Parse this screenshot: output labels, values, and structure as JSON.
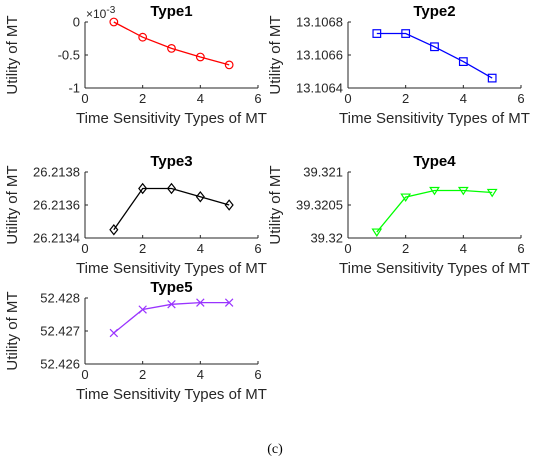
{
  "caption": "(c)",
  "chart_data": [
    {
      "type": "line",
      "title": "Type1",
      "xlabel": "Time Sensitivity Types of MT",
      "ylabel": "Utility of MT",
      "x": [
        1,
        2,
        3,
        4,
        5
      ],
      "values": [
        0,
        -0.00023,
        -0.0004,
        -0.00053,
        -0.00065
      ],
      "xlim": [
        0,
        6
      ],
      "ylim": [
        -0.001,
        0
      ],
      "xticks": [
        0,
        2,
        4,
        6
      ],
      "xtick_labels": [
        "0",
        "2",
        "4",
        "6"
      ],
      "yticks": [
        -0.001,
        -0.0005,
        0
      ],
      "ytick_labels": [
        "-1",
        "-0.5",
        "0"
      ],
      "exponent_label": "×10",
      "exponent_power": "-3",
      "marker": "circle",
      "color": "#ff0000"
    },
    {
      "type": "line",
      "title": "Type2",
      "xlabel": "Time Sensitivity Types of MT",
      "ylabel": "Utility of MT",
      "x": [
        1,
        2,
        3,
        4,
        5
      ],
      "values": [
        13.10673,
        13.10673,
        13.10665,
        13.10656,
        13.10646
      ],
      "xlim": [
        0,
        6
      ],
      "ylim": [
        13.1064,
        13.1068
      ],
      "xticks": [
        0,
        2,
        4,
        6
      ],
      "xtick_labels": [
        "0",
        "2",
        "4",
        "6"
      ],
      "yticks": [
        13.1064,
        13.1066,
        13.1068
      ],
      "ytick_labels": [
        "13.1064",
        "13.1066",
        "13.1068"
      ],
      "marker": "square",
      "color": "#0000ff"
    },
    {
      "type": "line",
      "title": "Type3",
      "xlabel": "Time Sensitivity Types of MT",
      "ylabel": "Utility of MT",
      "x": [
        1,
        2,
        3,
        4,
        5
      ],
      "values": [
        26.21345,
        26.2137,
        26.2137,
        26.21365,
        26.2136
      ],
      "xlim": [
        0,
        6
      ],
      "ylim": [
        26.2134,
        26.2138
      ],
      "xticks": [
        0,
        2,
        4,
        6
      ],
      "xtick_labels": [
        "0",
        "2",
        "4",
        "6"
      ],
      "yticks": [
        26.2134,
        26.2136,
        26.2138
      ],
      "ytick_labels": [
        "26.2134",
        "26.2136",
        "26.2138"
      ],
      "marker": "diamond",
      "color": "#000000"
    },
    {
      "type": "line",
      "title": "Type4",
      "xlabel": "Time Sensitivity Types of MT",
      "ylabel": "Utility of MT",
      "x": [
        1,
        2,
        3,
        4,
        5
      ],
      "values": [
        39.32009,
        39.32062,
        39.32072,
        39.32072,
        39.32069
      ],
      "xlim": [
        0,
        6
      ],
      "ylim": [
        39.32,
        39.321
      ],
      "xticks": [
        0,
        2,
        4,
        6
      ],
      "xtick_labels": [
        "0",
        "2",
        "4",
        "6"
      ],
      "yticks": [
        39.32,
        39.3205,
        39.321
      ],
      "ytick_labels": [
        "39.32",
        "39.3205",
        "39.321"
      ],
      "marker": "triangle-down",
      "color": "#00ff00"
    },
    {
      "type": "line",
      "title": "Type5",
      "xlabel": "Time Sensitivity Types of MT",
      "ylabel": "Utility of MT",
      "x": [
        1,
        2,
        3,
        4,
        5
      ],
      "values": [
        52.42694,
        52.42765,
        52.42781,
        52.42786,
        52.42786
      ],
      "xlim": [
        0,
        6
      ],
      "ylim": [
        52.426,
        52.428
      ],
      "xticks": [
        0,
        2,
        4,
        6
      ],
      "xtick_labels": [
        "0",
        "2",
        "4",
        "6"
      ],
      "yticks": [
        52.426,
        52.427,
        52.428
      ],
      "ytick_labels": [
        "52.426",
        "52.427",
        "52.428"
      ],
      "marker": "x",
      "color": "#9933ff"
    }
  ]
}
